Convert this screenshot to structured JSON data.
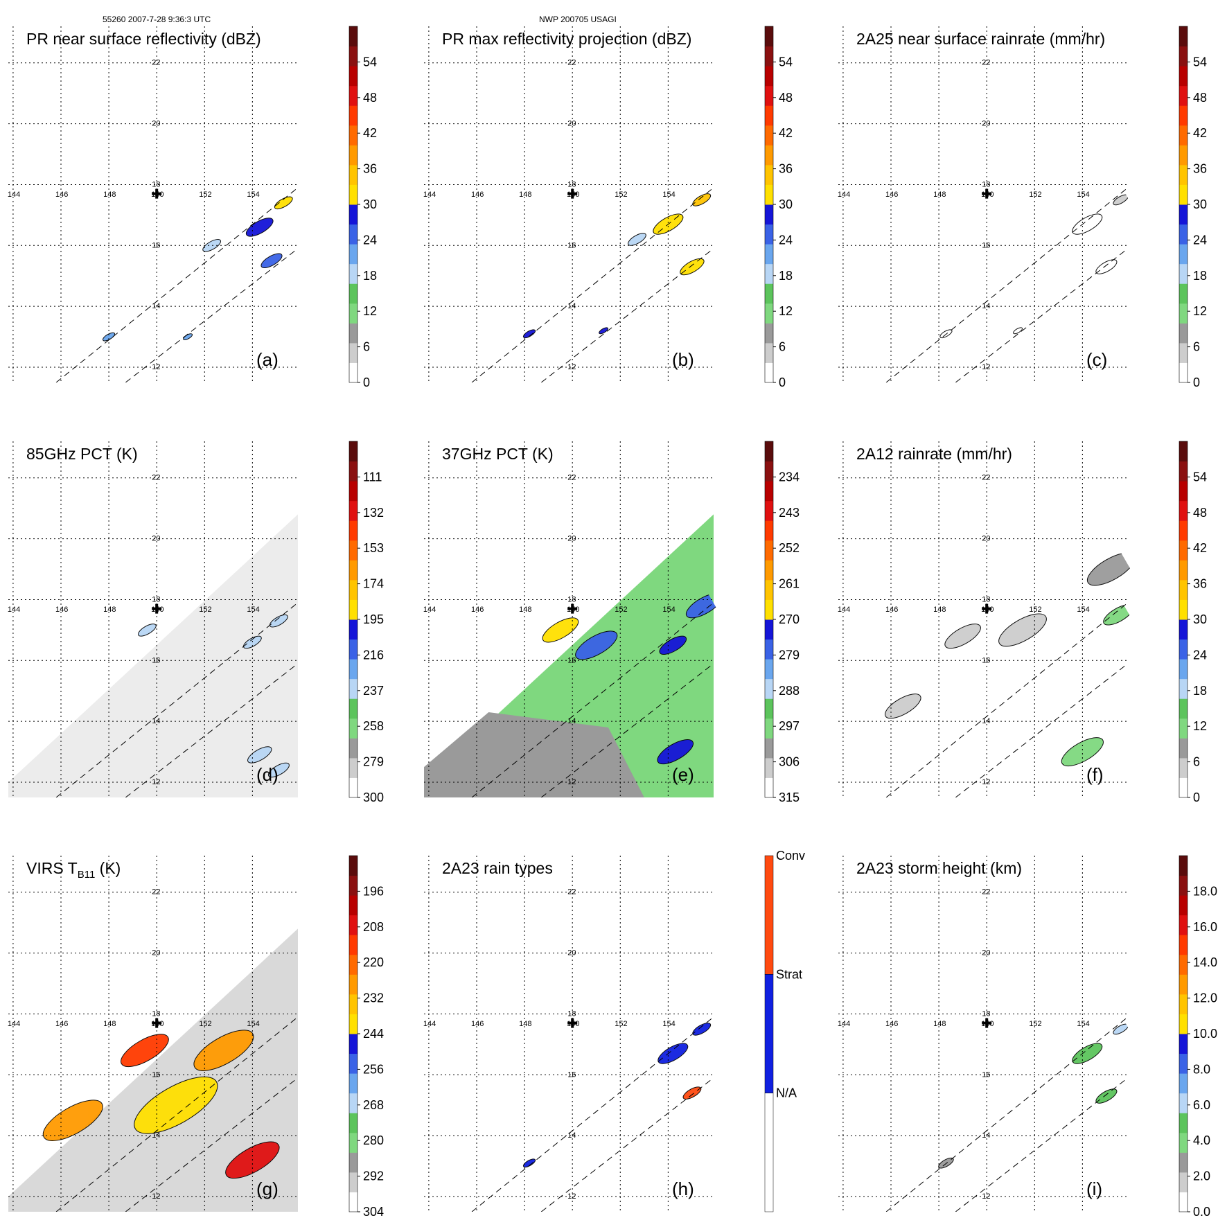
{
  "header": {
    "left": "55260 2007-7-28 9:36:3 UTC",
    "center": "NWP 200705 USAGI"
  },
  "chart_data": [
    {
      "type": "heatmap",
      "title": "PR near surface reflectivity (dBZ)",
      "panel_label": "(a)",
      "field": "reflectivity",
      "lon_ticks": [
        "144",
        "146",
        "148",
        "150",
        "152",
        "154"
      ],
      "lat_ticks": [
        "22",
        "20",
        "18",
        "16",
        "14",
        "12"
      ],
      "colorbar": {
        "labels": [
          "54",
          "48",
          "42",
          "36",
          "30",
          "24",
          "18",
          "12",
          "6",
          "0"
        ],
        "range": [
          0,
          60
        ]
      },
      "features": [
        {
          "lon": 154.3,
          "lat": 16.6,
          "value": 28,
          "spread": 0.45
        },
        {
          "lon": 155.3,
          "lat": 17.4,
          "value": 30,
          "spread": 0.3
        },
        {
          "lon": 154.8,
          "lat": 15.5,
          "value": 24,
          "spread": 0.35
        },
        {
          "lon": 152.3,
          "lat": 16.0,
          "value": 19,
          "spread": 0.3
        },
        {
          "lon": 148.0,
          "lat": 13.0,
          "value": 23,
          "spread": 0.2
        },
        {
          "lon": 151.3,
          "lat": 13.0,
          "value": 22,
          "spread": 0.15
        }
      ]
    },
    {
      "type": "heatmap",
      "title": "PR max reflectivity projection (dBZ)",
      "panel_label": "(b)",
      "field": "reflectivity",
      "lon_ticks": [
        "144",
        "146",
        "148",
        "150",
        "152",
        "154"
      ],
      "lat_ticks": [
        "22",
        "20",
        "18",
        "16",
        "14",
        "12"
      ],
      "colorbar": {
        "labels": [
          "54",
          "48",
          "42",
          "36",
          "30",
          "24",
          "18",
          "12",
          "6",
          "0"
        ],
        "range": [
          0,
          60
        ]
      },
      "features": [
        {
          "lon": 154.0,
          "lat": 16.7,
          "value": 30,
          "spread": 0.5
        },
        {
          "lon": 155.4,
          "lat": 17.5,
          "value": 34,
          "spread": 0.3
        },
        {
          "lon": 155.0,
          "lat": 15.3,
          "value": 31,
          "spread": 0.4
        },
        {
          "lon": 152.7,
          "lat": 16.2,
          "value": 18,
          "spread": 0.3
        },
        {
          "lon": 148.2,
          "lat": 13.1,
          "value": 28,
          "spread": 0.2
        },
        {
          "lon": 151.3,
          "lat": 13.2,
          "value": 28,
          "spread": 0.15
        }
      ]
    },
    {
      "type": "heatmap",
      "title": "2A25 near surface rainrate (mm/hr)",
      "panel_label": "(c)",
      "field": "rain",
      "lon_ticks": [
        "144",
        "146",
        "148",
        "150",
        "152",
        "154"
      ],
      "lat_ticks": [
        "22",
        "20",
        "18",
        "16",
        "14",
        "12"
      ],
      "colorbar": {
        "labels": [
          "54",
          "48",
          "42",
          "36",
          "30",
          "24",
          "18",
          "12",
          "6",
          "0"
        ],
        "range": [
          0,
          60
        ]
      },
      "features": [
        {
          "lon": 154.2,
          "lat": 16.7,
          "value": 3,
          "spread": 0.5
        },
        {
          "lon": 155.6,
          "lat": 17.5,
          "value": 4,
          "spread": 0.25
        },
        {
          "lon": 155.0,
          "lat": 15.3,
          "value": 3,
          "spread": 0.35
        },
        {
          "lon": 148.3,
          "lat": 13.1,
          "value": 2,
          "spread": 0.2
        },
        {
          "lon": 151.3,
          "lat": 13.2,
          "value": 2,
          "spread": 0.15
        }
      ]
    },
    {
      "type": "heatmap",
      "title": "85GHz PCT (K)",
      "panel_label": "(d)",
      "field": "pct85",
      "lon_ticks": [
        "144",
        "146",
        "148",
        "150",
        "152",
        "154"
      ],
      "lat_ticks": [
        "22",
        "20",
        "18",
        "16",
        "14",
        "12"
      ],
      "colorbar": {
        "labels": [
          "111",
          "132",
          "153",
          "174",
          "195",
          "216",
          "237",
          "258",
          "279",
          "300"
        ],
        "range": [
          300,
          90
        ]
      },
      "features": [
        {
          "lon": 149.6,
          "lat": 17.0,
          "value": 232,
          "spread": 0.3
        },
        {
          "lon": 155.1,
          "lat": 17.3,
          "value": 230,
          "spread": 0.3
        },
        {
          "lon": 154.3,
          "lat": 12.9,
          "value": 235,
          "spread": 0.4
        },
        {
          "lon": 155.1,
          "lat": 12.4,
          "value": 238,
          "spread": 0.35
        },
        {
          "lon": 154.0,
          "lat": 16.6,
          "value": 240,
          "spread": 0.3
        }
      ]
    },
    {
      "type": "heatmap",
      "title": "37GHz PCT (K)",
      "panel_label": "(e)",
      "field": "pct37",
      "lon_ticks": [
        "144",
        "146",
        "148",
        "150",
        "152",
        "154"
      ],
      "lat_ticks": [
        "22",
        "20",
        "18",
        "16",
        "14",
        "12"
      ],
      "colorbar": {
        "labels": [
          "234",
          "243",
          "252",
          "261",
          "270",
          "279",
          "288",
          "297",
          "306",
          "315"
        ],
        "range": [
          315,
          225
        ]
      },
      "features": [
        {
          "lon": 149.5,
          "lat": 17.0,
          "value": 268,
          "spread": 0.6
        },
        {
          "lon": 154.2,
          "lat": 16.5,
          "value": 270,
          "spread": 0.45
        },
        {
          "lon": 154.3,
          "lat": 13.0,
          "value": 272,
          "spread": 0.6
        },
        {
          "lon": 151.0,
          "lat": 16.5,
          "value": 278,
          "spread": 0.7
        },
        {
          "lon": 155.5,
          "lat": 17.8,
          "value": 275,
          "spread": 0.6
        }
      ]
    },
    {
      "type": "heatmap",
      "title": "2A12 rainrate (mm/hr)",
      "panel_label": "(f)",
      "field": "rain",
      "lon_ticks": [
        "144",
        "146",
        "148",
        "150",
        "152",
        "154"
      ],
      "lat_ticks": [
        "22",
        "20",
        "18",
        "16",
        "14",
        "12"
      ],
      "colorbar": {
        "labels": [
          "54",
          "48",
          "42",
          "36",
          "30",
          "24",
          "18",
          "12",
          "6",
          "0"
        ],
        "range": [
          0,
          60
        ]
      },
      "features": [
        {
          "lon": 149.0,
          "lat": 16.8,
          "value": 5,
          "spread": 0.6
        },
        {
          "lon": 151.5,
          "lat": 17.0,
          "value": 5,
          "spread": 0.8
        },
        {
          "lon": 155.2,
          "lat": 19.0,
          "value": 7,
          "spread": 0.8
        },
        {
          "lon": 155.5,
          "lat": 17.5,
          "value": 10,
          "spread": 0.5
        },
        {
          "lon": 146.5,
          "lat": 14.5,
          "value": 5,
          "spread": 0.6
        },
        {
          "lon": 154.0,
          "lat": 13.0,
          "value": 10,
          "spread": 0.7
        }
      ]
    },
    {
      "type": "heatmap",
      "title": "VIRS T",
      "title_subscript": "B11",
      "title_unit": " (K)",
      "panel_label": "(g)",
      "field": "ir",
      "lon_ticks": [
        "144",
        "146",
        "148",
        "150",
        "152",
        "154"
      ],
      "lat_ticks": [
        "22",
        "20",
        "18",
        "16",
        "14",
        "12"
      ],
      "colorbar": {
        "labels": [
          "196",
          "208",
          "220",
          "232",
          "244",
          "256",
          "268",
          "280",
          "292",
          "304"
        ],
        "range": [
          304,
          184
        ]
      },
      "features": [
        {
          "lon": 149.5,
          "lat": 16.8,
          "value": 212,
          "spread": 0.8
        },
        {
          "lon": 150.8,
          "lat": 15.0,
          "value": 240,
          "spread": 1.4
        },
        {
          "lon": 154.0,
          "lat": 13.2,
          "value": 205,
          "spread": 0.9
        },
        {
          "lon": 146.5,
          "lat": 14.5,
          "value": 230,
          "spread": 1.0
        },
        {
          "lon": 152.8,
          "lat": 16.8,
          "value": 225,
          "spread": 1.0
        }
      ]
    },
    {
      "type": "heatmap",
      "title": "2A23 rain types",
      "panel_label": "(h)",
      "field": "raintype",
      "lon_ticks": [
        "144",
        "146",
        "148",
        "150",
        "152",
        "154"
      ],
      "lat_ticks": [
        "22",
        "20",
        "18",
        "16",
        "14",
        "12"
      ],
      "colorbar": {
        "labels": [
          "Conv",
          "Strat",
          "N/A"
        ],
        "categories": [
          "Conv",
          "Strat",
          "N/A"
        ]
      },
      "features": [
        {
          "lon": 154.2,
          "lat": 16.7,
          "value": "Strat",
          "spread": 0.5
        },
        {
          "lon": 155.4,
          "lat": 17.5,
          "value": "Strat",
          "spread": 0.3
        },
        {
          "lon": 155.0,
          "lat": 15.4,
          "value": "Conv",
          "spread": 0.3
        },
        {
          "lon": 148.2,
          "lat": 13.1,
          "value": "Strat",
          "spread": 0.2
        }
      ]
    },
    {
      "type": "heatmap",
      "title": "2A23 storm height (km)",
      "panel_label": "(i)",
      "field": "height",
      "lon_ticks": [
        "144",
        "146",
        "148",
        "150",
        "152",
        "154"
      ],
      "lat_ticks": [
        "22",
        "20",
        "18",
        "16",
        "14",
        "12"
      ],
      "colorbar": {
        "labels": [
          "18.0",
          "16.0",
          "14.0",
          "12.0",
          "10.0",
          "8.0",
          "6.0",
          "4.0",
          "2.0",
          "0.0"
        ],
        "range": [
          0,
          20
        ]
      },
      "features": [
        {
          "lon": 154.2,
          "lat": 16.7,
          "value": 5.5,
          "spread": 0.5
        },
        {
          "lon": 155.6,
          "lat": 17.5,
          "value": 6,
          "spread": 0.25
        },
        {
          "lon": 155.0,
          "lat": 15.3,
          "value": 5,
          "spread": 0.35
        },
        {
          "lon": 148.3,
          "lat": 13.1,
          "value": 3,
          "spread": 0.25
        }
      ]
    }
  ],
  "storm_center": {
    "lon": 150,
    "lat": 17.7
  }
}
